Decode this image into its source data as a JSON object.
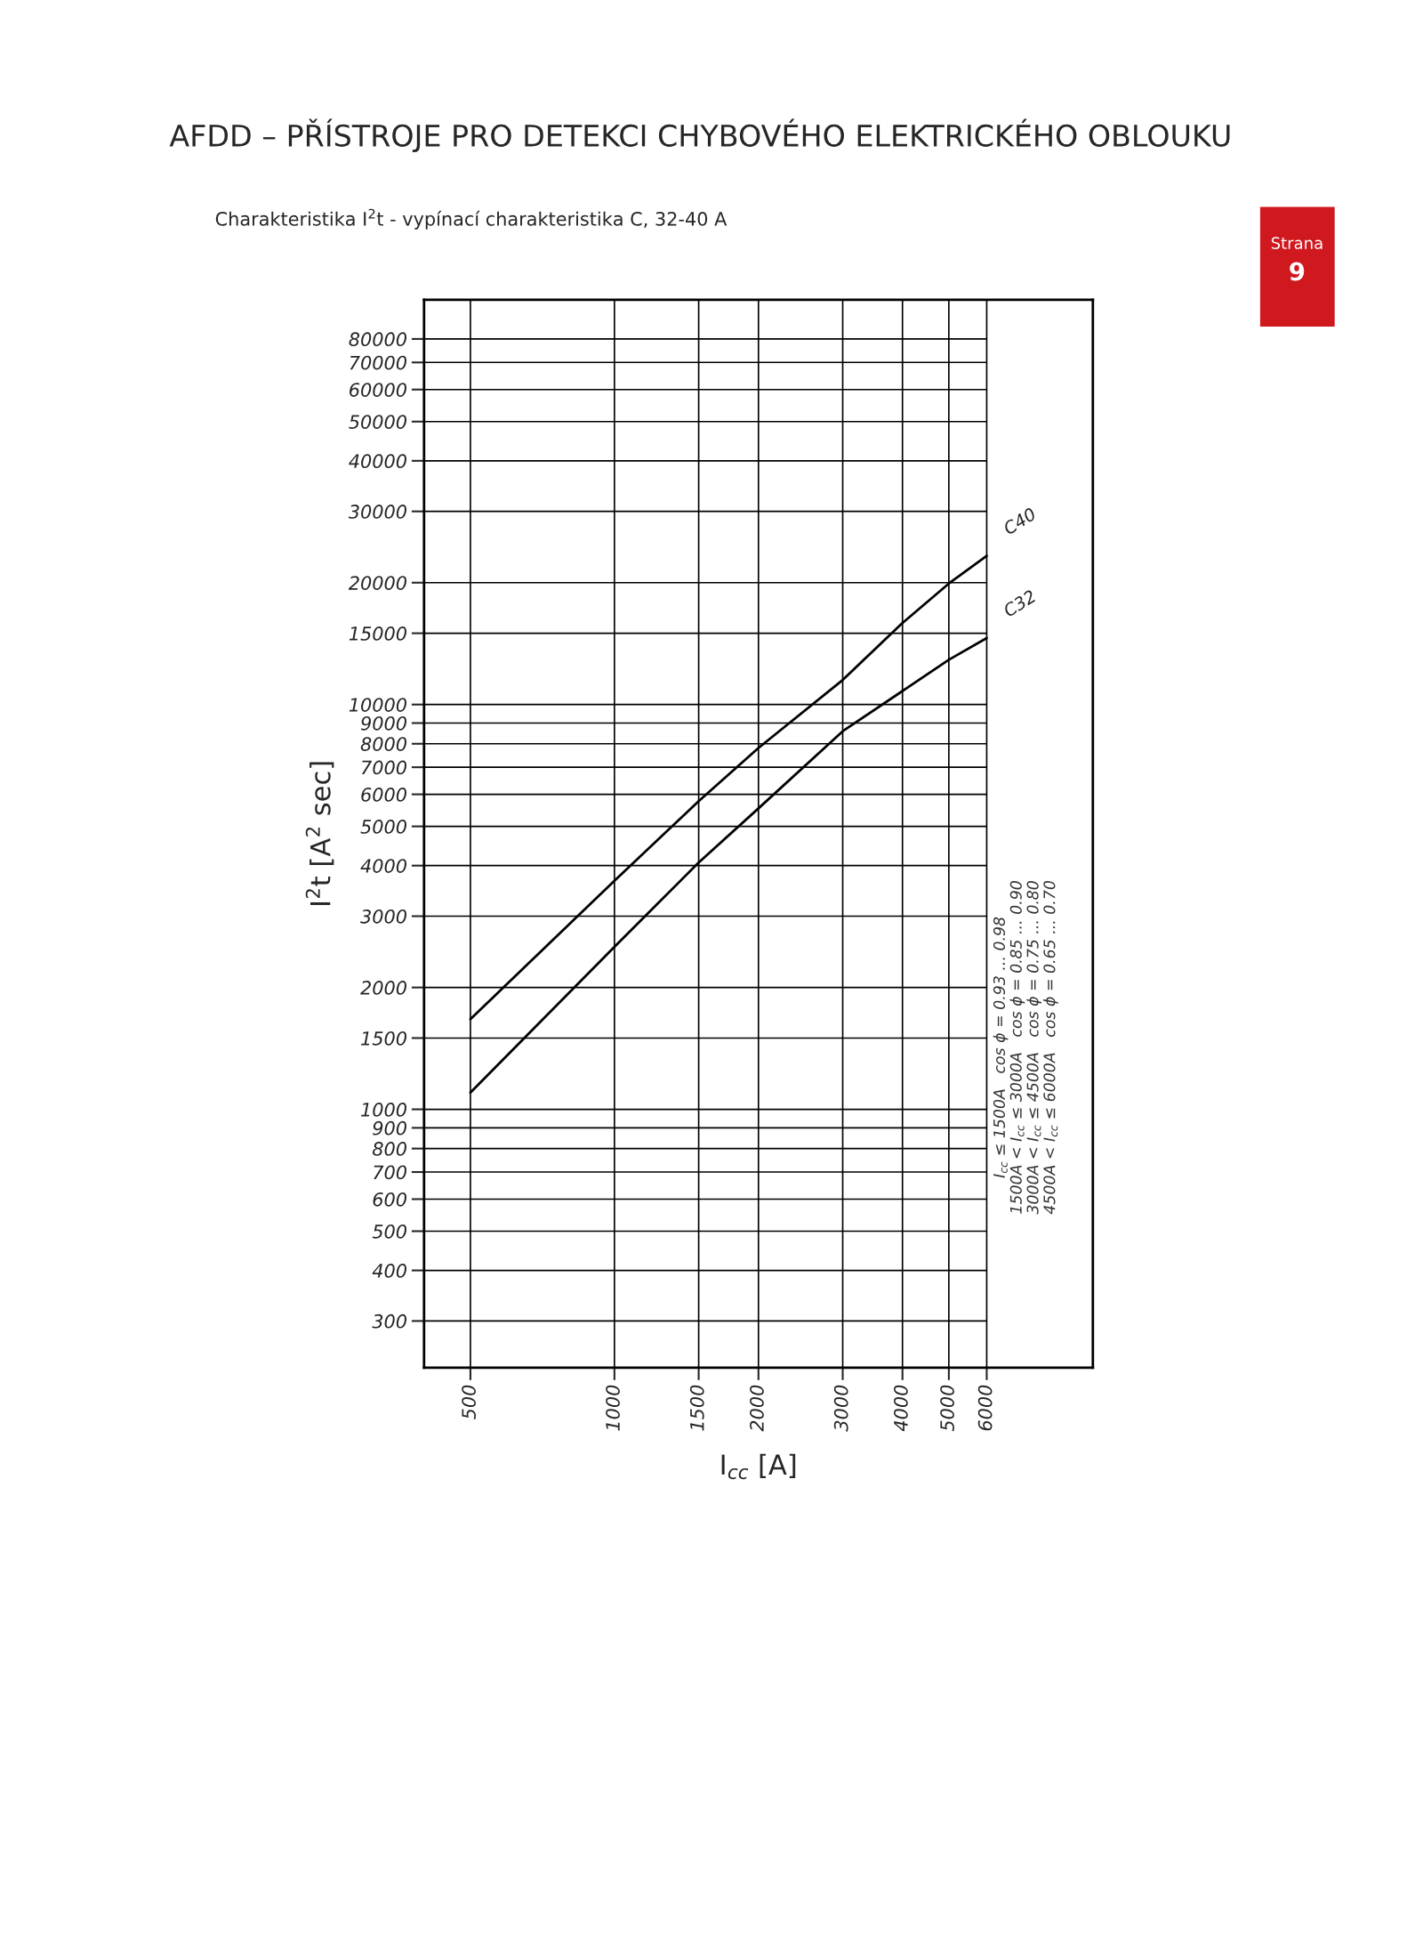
{
  "chart_data": {
    "type": "line",
    "title": "AFDD – PŘÍSTROJE PRO DETEKCI CHYBOVÉHO ELEKTRICKÉHO OBLOUKU",
    "subtitle": "Charakteristika I$^{2}$t - vypínací charakteristika C, 32-40 A",
    "xlabel": "I$_{cc}$ [A]",
    "ylabel": "I$^{2}$t [A$^{2}$ sec]",
    "x": [
      500,
      1000,
      1500,
      2000,
      3000,
      4000,
      5000,
      6000
    ],
    "series": [
      {
        "name": "C40",
        "color": "#000000",
        "values": [
          1670,
          3670,
          5770,
          7810,
          11500,
          15900,
          19900,
          23300
        ]
      },
      {
        "name": "C32",
        "color": "#000000",
        "values": [
          1100,
          2520,
          4070,
          5540,
          8590,
          10800,
          12900,
          14600
        ]
      }
    ],
    "log": "xy",
    "xlim": [
      400,
      10000
    ],
    "ylim": [
      230,
      100000
    ],
    "xticks": [
      500,
      1000,
      1500,
      2000,
      3000,
      4000,
      5000,
      6000
    ],
    "yticks": [
      300,
      400,
      500,
      600,
      700,
      800,
      900,
      1000,
      1500,
      2000,
      3000,
      4000,
      5000,
      6000,
      7000,
      8000,
      9000,
      10000,
      15000,
      20000,
      30000,
      40000,
      50000,
      60000,
      70000,
      80000
    ],
    "grid": true,
    "legend": false,
    "marker": "none",
    "line_style": "solid",
    "annotations": [
      "I$_{cc}$ ≤ 1500A   cos ϕ = 0.93 ... 0.98",
      "1500A < I$_{cc}$ ≤ 3000A   cos ϕ = 0.85 ... 0.90",
      "3000A < I$_{cc}$ ≤ 4500A   cos ϕ = 0.75 ... 0.80",
      "4500A < I$_{cc}$ ≤ 6000A   cos ϕ = 0.65 ... 0.70",
      "Strana",
      "9"
    ]
  }
}
